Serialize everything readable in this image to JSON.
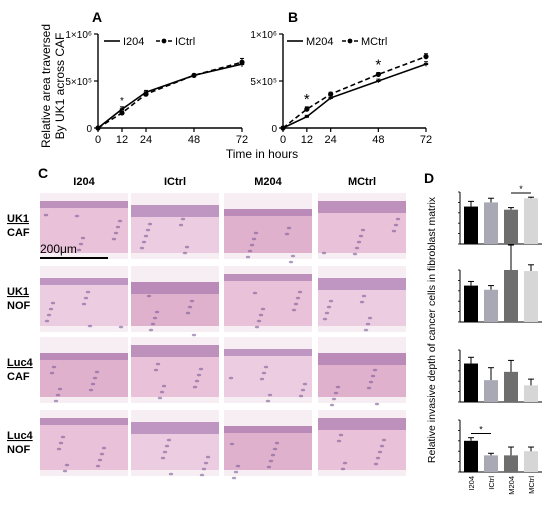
{
  "panels": {
    "A": "A",
    "B": "B",
    "C": "C",
    "D": "D"
  },
  "line_ylabel_1": "Relative area traversed",
  "line_ylabel_2": "By UK1 across CAF",
  "line_xlabel": "Time in hours",
  "line_ytick_labels": [
    "0",
    "5×10⁵",
    "1×10⁶"
  ],
  "significance_marks": [
    "*",
    "*",
    "*",
    "*",
    "*"
  ],
  "grid": {
    "column_headers": [
      "I204",
      "ICtrl",
      "M204",
      "MCtrl"
    ],
    "row_labels": [
      {
        "top": "UK1",
        "bottom": "CAF"
      },
      {
        "top": "UK1",
        "bottom": "NOF"
      },
      {
        "top": "Luc4",
        "bottom": "CAF"
      },
      {
        "top": "Luc4",
        "bottom": "NOF"
      }
    ],
    "scale_bar": "200μm",
    "tile_colors": [
      "#e6b9d2",
      "#eac6dc",
      "#dba6c6"
    ]
  },
  "bar_ylabel": "Relative invasive depth of cancer cells in fibroblast matrix",
  "chart_data": [
    {
      "type": "line",
      "panel": "A",
      "x": [
        0,
        12,
        24,
        48,
        72
      ],
      "xlim": [
        0,
        72
      ],
      "ylim": [
        0,
        1000000
      ],
      "xticks": [
        0,
        12,
        24,
        48,
        72
      ],
      "series": [
        {
          "name": "I204",
          "values": [
            0,
            200000,
            380000,
            560000,
            680000
          ],
          "errors": [
            0,
            25000,
            20000,
            15000,
            30000
          ],
          "style": "solid",
          "marker": "cross",
          "color": "#000000"
        },
        {
          "name": "ICtrl",
          "values": [
            0,
            160000,
            360000,
            560000,
            700000
          ],
          "errors": [
            0,
            20000,
            20000,
            15000,
            40000
          ],
          "style": "dashed",
          "marker": "dot",
          "color": "#000000"
        }
      ]
    },
    {
      "type": "line",
      "panel": "B",
      "x": [
        0,
        12,
        24,
        48,
        72
      ],
      "xlim": [
        0,
        72
      ],
      "ylim": [
        0,
        1000000
      ],
      "xticks": [
        0,
        12,
        24,
        48,
        72
      ],
      "series": [
        {
          "name": "M204",
          "values": [
            0,
            120000,
            320000,
            500000,
            680000
          ],
          "errors": [
            0,
            15000,
            20000,
            20000,
            25000
          ],
          "style": "solid",
          "marker": "cross",
          "color": "#000000"
        },
        {
          "name": "MCtrl",
          "values": [
            0,
            200000,
            360000,
            570000,
            760000
          ],
          "errors": [
            0,
            25000,
            20000,
            20000,
            30000
          ],
          "style": "dashed",
          "marker": "dot",
          "color": "#000000"
        }
      ]
    },
    {
      "type": "bar",
      "panel": "D",
      "categories": [
        "I204",
        "ICtrl",
        "M204",
        "MCtrl"
      ],
      "colors": [
        "#000000",
        "#a9a9b6",
        "#6e6e6e",
        "#d6d6d6"
      ],
      "ylim": [
        0,
        250
      ],
      "subplots": [
        {
          "values": [
            180,
            200,
            165,
            220
          ],
          "errors": [
            25,
            20,
            10,
            5
          ]
        },
        {
          "values": [
            175,
            155,
            250,
            245
          ],
          "errors": [
            20,
            20,
            120,
            30
          ]
        },
        {
          "values": [
            185,
            105,
            145,
            80
          ],
          "errors": [
            30,
            60,
            55,
            30
          ]
        },
        {
          "values": [
            150,
            80,
            80,
            100
          ],
          "errors": [
            15,
            10,
            40,
            20
          ]
        }
      ]
    }
  ]
}
